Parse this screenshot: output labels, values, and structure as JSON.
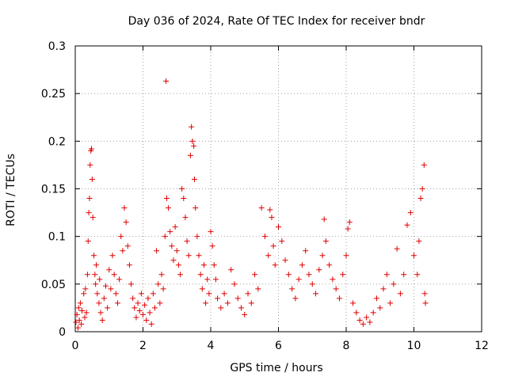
{
  "chart_data": {
    "type": "scatter",
    "title": "Day 036 of 2024, Rate Of TEC Index for receiver bndr",
    "xlabel": "GPS time / hours",
    "ylabel": "ROTI / TECUs",
    "xlim": [
      0,
      12
    ],
    "ylim": [
      0,
      0.3
    ],
    "xticks": [
      "0",
      "2",
      "4",
      "6",
      "8",
      "10",
      "12"
    ],
    "yticks": [
      "0",
      "0.05",
      "0.1",
      "0.15",
      "0.2",
      "0.25",
      "0.3"
    ],
    "grid": true,
    "marker": "+",
    "color": "#e00000",
    "series": [
      {
        "name": "ROTI",
        "points": [
          [
            0.02,
            0.01
          ],
          [
            0.05,
            0.018
          ],
          [
            0.08,
            0.004
          ],
          [
            0.1,
            0.025
          ],
          [
            0.12,
            0.012
          ],
          [
            0.15,
            0.03
          ],
          [
            0.18,
            0.008
          ],
          [
            0.2,
            0.022
          ],
          [
            0.25,
            0.04
          ],
          [
            0.28,
            0.015
          ],
          [
            0.3,
            0.045
          ],
          [
            0.33,
            0.02
          ],
          [
            0.36,
            0.06
          ],
          [
            0.38,
            0.095
          ],
          [
            0.4,
            0.125
          ],
          [
            0.42,
            0.14
          ],
          [
            0.44,
            0.175
          ],
          [
            0.46,
            0.19
          ],
          [
            0.48,
            0.192
          ],
          [
            0.5,
            0.16
          ],
          [
            0.52,
            0.12
          ],
          [
            0.55,
            0.08
          ],
          [
            0.58,
            0.06
          ],
          [
            0.6,
            0.05
          ],
          [
            0.62,
            0.07
          ],
          [
            0.65,
            0.04
          ],
          [
            0.7,
            0.03
          ],
          [
            0.72,
            0.055
          ],
          [
            0.75,
            0.02
          ],
          [
            0.8,
            0.012
          ],
          [
            0.85,
            0.035
          ],
          [
            0.9,
            0.048
          ],
          [
            0.95,
            0.025
          ],
          [
            1.0,
            0.065
          ],
          [
            1.05,
            0.045
          ],
          [
            1.1,
            0.08
          ],
          [
            1.15,
            0.06
          ],
          [
            1.2,
            0.04
          ],
          [
            1.25,
            0.03
          ],
          [
            1.3,
            0.055
          ],
          [
            1.35,
            0.1
          ],
          [
            1.4,
            0.085
          ],
          [
            1.45,
            0.13
          ],
          [
            1.5,
            0.115
          ],
          [
            1.55,
            0.09
          ],
          [
            1.6,
            0.07
          ],
          [
            1.65,
            0.05
          ],
          [
            1.7,
            0.035
          ],
          [
            1.75,
            0.025
          ],
          [
            1.8,
            0.015
          ],
          [
            1.85,
            0.03
          ],
          [
            1.9,
            0.022
          ],
          [
            1.95,
            0.04
          ],
          [
            2.0,
            0.018
          ],
          [
            2.05,
            0.028
          ],
          [
            2.1,
            0.012
          ],
          [
            2.15,
            0.035
          ],
          [
            2.2,
            0.02
          ],
          [
            2.25,
            0.008
          ],
          [
            2.3,
            0.04
          ],
          [
            2.35,
            0.025
          ],
          [
            2.4,
            0.085
          ],
          [
            2.45,
            0.05
          ],
          [
            2.5,
            0.03
          ],
          [
            2.55,
            0.06
          ],
          [
            2.6,
            0.045
          ],
          [
            2.65,
            0.1
          ],
          [
            2.68,
            0.263
          ],
          [
            2.7,
            0.14
          ],
          [
            2.75,
            0.13
          ],
          [
            2.8,
            0.105
          ],
          [
            2.85,
            0.09
          ],
          [
            2.9,
            0.075
          ],
          [
            2.95,
            0.11
          ],
          [
            3.0,
            0.085
          ],
          [
            3.05,
            0.07
          ],
          [
            3.1,
            0.06
          ],
          [
            3.15,
            0.15
          ],
          [
            3.2,
            0.14
          ],
          [
            3.25,
            0.12
          ],
          [
            3.3,
            0.095
          ],
          [
            3.35,
            0.08
          ],
          [
            3.4,
            0.185
          ],
          [
            3.43,
            0.215
          ],
          [
            3.46,
            0.2
          ],
          [
            3.5,
            0.195
          ],
          [
            3.52,
            0.16
          ],
          [
            3.55,
            0.13
          ],
          [
            3.6,
            0.1
          ],
          [
            3.65,
            0.08
          ],
          [
            3.7,
            0.06
          ],
          [
            3.75,
            0.045
          ],
          [
            3.8,
            0.07
          ],
          [
            3.85,
            0.03
          ],
          [
            3.9,
            0.055
          ],
          [
            3.95,
            0.04
          ],
          [
            4.0,
            0.105
          ],
          [
            4.05,
            0.09
          ],
          [
            4.1,
            0.07
          ],
          [
            4.15,
            0.055
          ],
          [
            4.2,
            0.035
          ],
          [
            4.3,
            0.025
          ],
          [
            4.4,
            0.04
          ],
          [
            4.5,
            0.03
          ],
          [
            4.6,
            0.065
          ],
          [
            4.7,
            0.05
          ],
          [
            4.8,
            0.035
          ],
          [
            4.9,
            0.025
          ],
          [
            5.0,
            0.018
          ],
          [
            5.1,
            0.04
          ],
          [
            5.2,
            0.03
          ],
          [
            5.3,
            0.06
          ],
          [
            5.4,
            0.045
          ],
          [
            5.5,
            0.13
          ],
          [
            5.6,
            0.1
          ],
          [
            5.7,
            0.08
          ],
          [
            5.75,
            0.128
          ],
          [
            5.8,
            0.12
          ],
          [
            5.85,
            0.09
          ],
          [
            5.9,
            0.07
          ],
          [
            6.0,
            0.11
          ],
          [
            6.1,
            0.095
          ],
          [
            6.2,
            0.075
          ],
          [
            6.3,
            0.06
          ],
          [
            6.4,
            0.045
          ],
          [
            6.5,
            0.035
          ],
          [
            6.6,
            0.055
          ],
          [
            6.7,
            0.07
          ],
          [
            6.8,
            0.085
          ],
          [
            6.9,
            0.06
          ],
          [
            7.0,
            0.05
          ],
          [
            7.1,
            0.04
          ],
          [
            7.2,
            0.065
          ],
          [
            7.3,
            0.08
          ],
          [
            7.35,
            0.118
          ],
          [
            7.4,
            0.095
          ],
          [
            7.5,
            0.07
          ],
          [
            7.6,
            0.055
          ],
          [
            7.7,
            0.045
          ],
          [
            7.8,
            0.035
          ],
          [
            7.9,
            0.06
          ],
          [
            8.0,
            0.08
          ],
          [
            8.05,
            0.108
          ],
          [
            8.1,
            0.115
          ],
          [
            8.2,
            0.03
          ],
          [
            8.3,
            0.02
          ],
          [
            8.4,
            0.012
          ],
          [
            8.5,
            0.008
          ],
          [
            8.6,
            0.015
          ],
          [
            8.7,
            0.01
          ],
          [
            8.8,
            0.02
          ],
          [
            8.9,
            0.035
          ],
          [
            9.0,
            0.025
          ],
          [
            9.1,
            0.045
          ],
          [
            9.2,
            0.06
          ],
          [
            9.3,
            0.03
          ],
          [
            9.4,
            0.05
          ],
          [
            9.5,
            0.087
          ],
          [
            9.6,
            0.04
          ],
          [
            9.7,
            0.06
          ],
          [
            9.8,
            0.112
          ],
          [
            9.9,
            0.125
          ],
          [
            10.0,
            0.08
          ],
          [
            10.1,
            0.06
          ],
          [
            10.15,
            0.095
          ],
          [
            10.2,
            0.14
          ],
          [
            10.25,
            0.15
          ],
          [
            10.3,
            0.175
          ],
          [
            10.32,
            0.04
          ],
          [
            10.34,
            0.03
          ]
        ]
      }
    ]
  }
}
